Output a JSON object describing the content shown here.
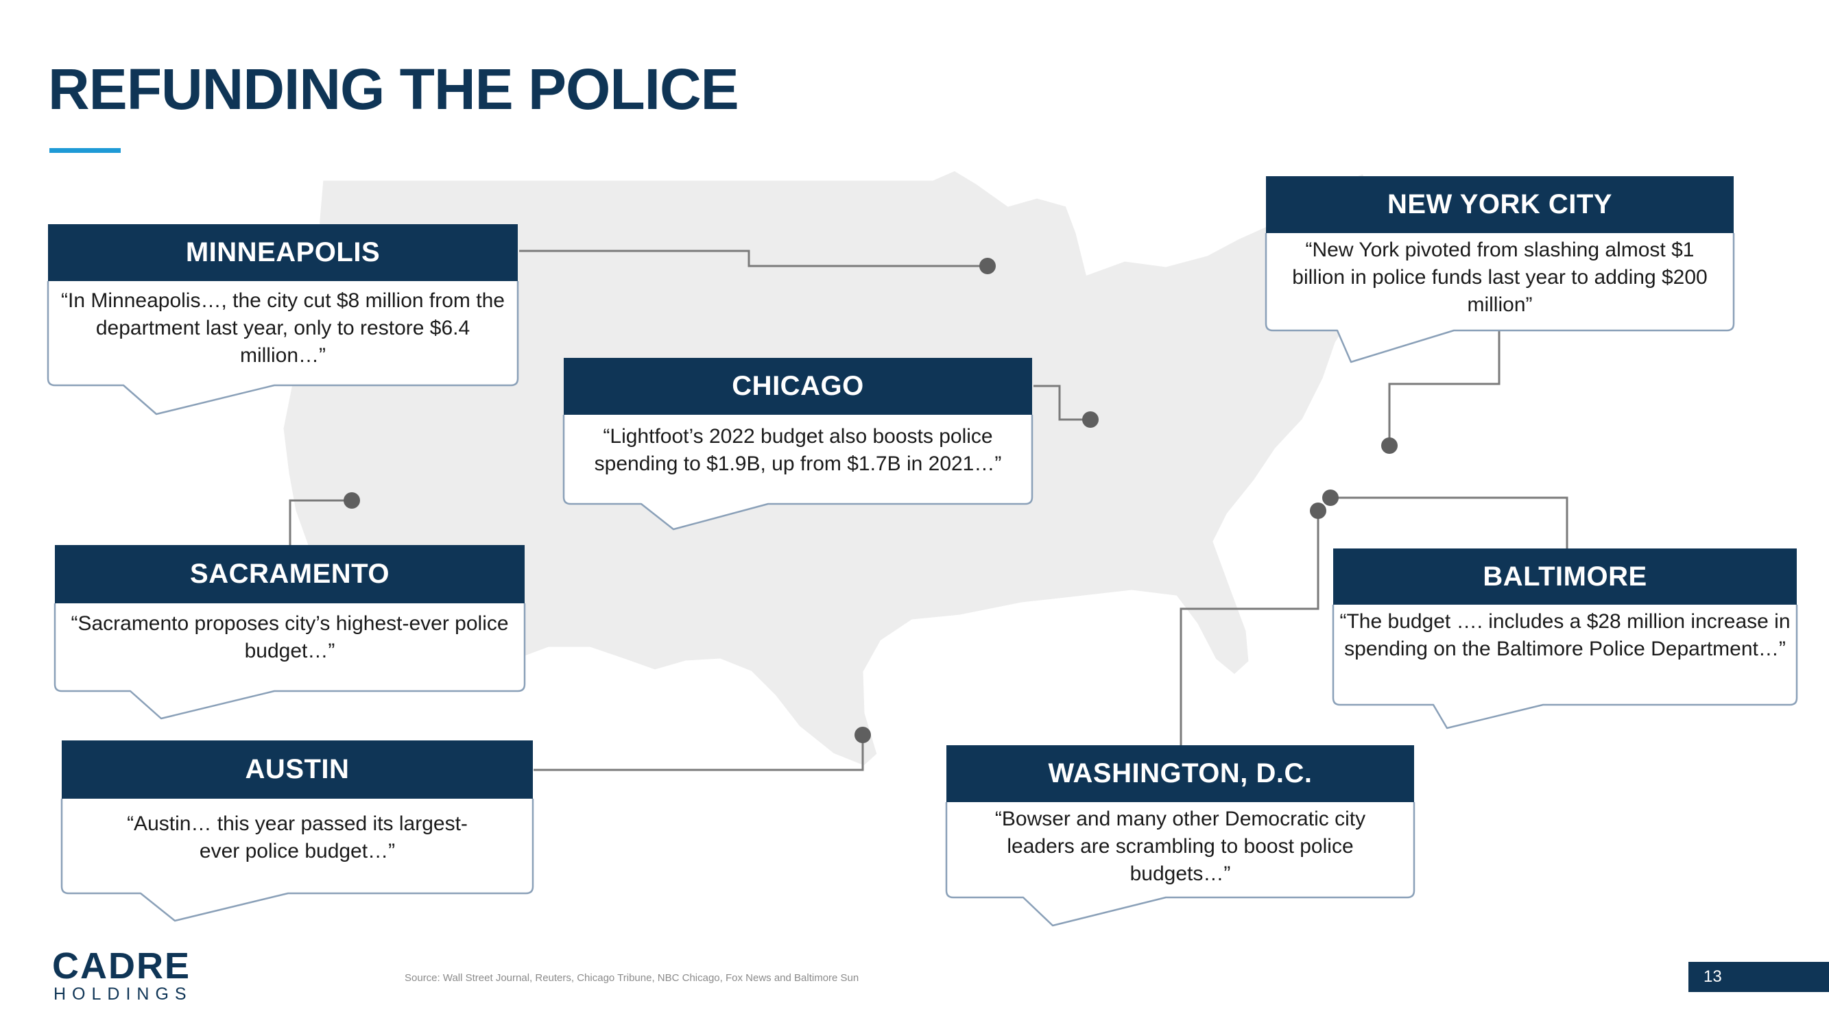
{
  "title": "REFUNDING THE POLICE",
  "callouts": {
    "minneapolis": {
      "heading": "MINNEAPOLIS",
      "quote": "“In Minneapolis…, the city cut $8 million from the department last year, only to restore $6.4 million…”"
    },
    "chicago": {
      "heading": "CHICAGO",
      "quote": "“Lightfoot’s 2022 budget also boosts police spending to $1.9B, up from $1.7B in 2021…”"
    },
    "new_york_city": {
      "heading": "NEW YORK CITY",
      "quote": "“New York pivoted from slashing almost $1 billion in police funds last year to adding $200 million”"
    },
    "sacramento": {
      "heading": "SACRAMENTO",
      "quote": "“Sacramento proposes city’s highest-ever police budget…”"
    },
    "baltimore": {
      "heading": "BALTIMORE",
      "quote": "“The budget …. includes a $28 million increase in spending on the Baltimore Police Department…”"
    },
    "austin": {
      "heading": "AUSTIN",
      "quote": "“Austin… this year passed its largest-ever police budget…”"
    },
    "washington_dc": {
      "heading": "WASHINGTON, D.C.",
      "quote": "“Bowser and many other Democratic city leaders are scrambling to boost police budgets…”"
    }
  },
  "logo": {
    "word": "CADRE",
    "sub": "HOLDINGS"
  },
  "source": "Source: Wall Street Journal, Reuters, Chicago Tribune, NBC Chicago, Fox News and Baltimore Sun",
  "page_number": "13",
  "colors": {
    "navy": "#0f3556",
    "accent_blue": "#1e9ad6",
    "map_gray": "#ededed",
    "connector": "#7a7a7a"
  }
}
